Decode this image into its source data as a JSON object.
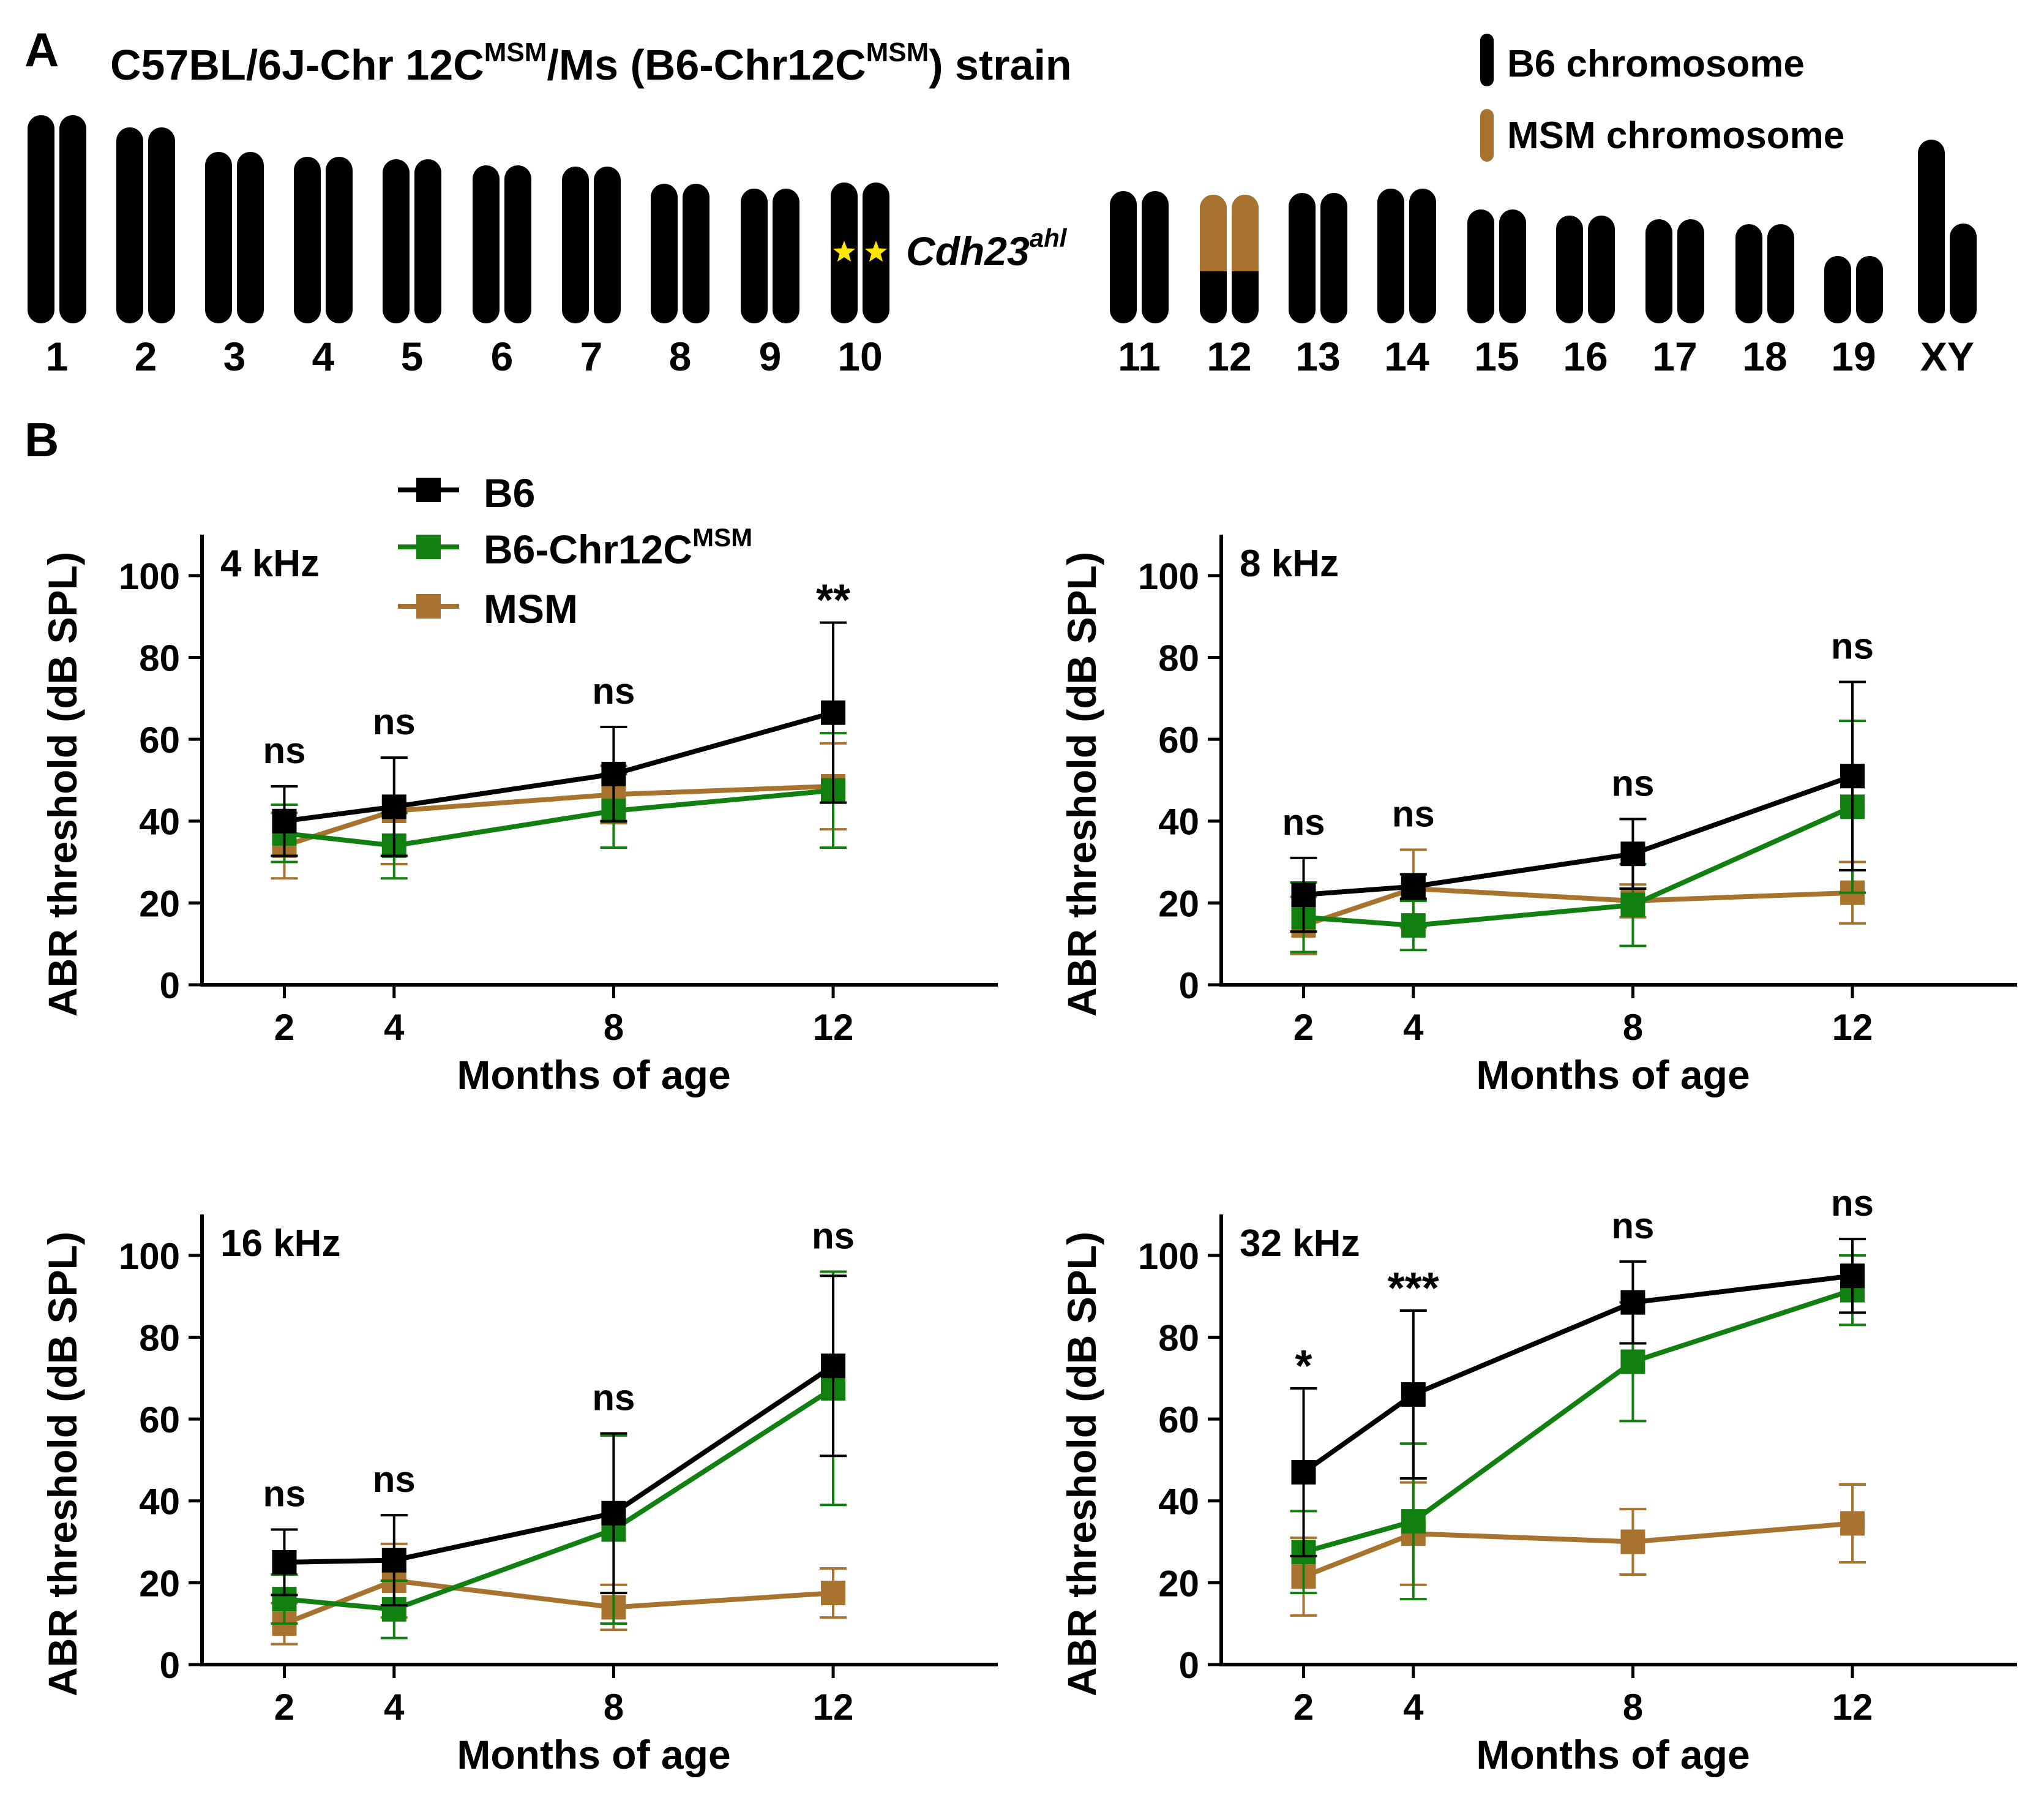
{
  "colors": {
    "b6": "#000000",
    "chr12": "#118011",
    "msm": "#A8732E",
    "star": "#FFE800"
  },
  "panelA": {
    "letter": "A",
    "title": {
      "p1": "C57BL/6J-Chr 12C",
      "sup1": "MSM",
      "p2": "/Ms (B6-Chr12C",
      "sup2": "MSM",
      "p3": ") strain"
    },
    "legend": {
      "b6": "B6 chromosome",
      "msm": "MSM chromosome"
    },
    "gene": {
      "name": "Cdh23",
      "sup": "ahl"
    },
    "chromosomes": [
      {
        "label": "1",
        "chromosome": 1
      },
      {
        "label": "2",
        "chromosome": 2
      },
      {
        "label": "3",
        "chromosome": 3
      },
      {
        "label": "4",
        "chromosome": 4
      },
      {
        "label": "5",
        "chromosome": 5
      },
      {
        "label": "6",
        "chromosome": 6
      },
      {
        "label": "7",
        "chromosome": 7
      },
      {
        "label": "8",
        "chromosome": 8
      },
      {
        "label": "9",
        "chromosome": 9
      },
      {
        "label": "10",
        "chromosome": 10
      },
      {
        "label": "11",
        "chromosome": 11
      },
      {
        "label": "12",
        "chromosome": 12
      },
      {
        "label": "13",
        "chromosome": 13
      },
      {
        "label": "14",
        "chromosome": 14
      },
      {
        "label": "15",
        "chromosome": 15
      },
      {
        "label": "16",
        "chromosome": 16
      },
      {
        "label": "17",
        "chromosome": 17
      },
      {
        "label": "18",
        "chromosome": 18
      },
      {
        "label": "19",
        "chromosome": 19
      },
      {
        "label": "XY",
        "chromosome": "XY"
      }
    ]
  },
  "panelB": {
    "letter": "B",
    "legend": {
      "b6": "B6",
      "chr12": "B6-Chr12C",
      "chr12_sup": "MSM",
      "msm": "MSM"
    }
  },
  "chart_data": [
    {
      "type": "line",
      "title": "4 kHz",
      "xlabel": "Months of age",
      "ylabel": "ABR threshold (dB SPL)",
      "x": [
        2,
        4,
        8,
        12
      ],
      "xlim": [
        0.5,
        15
      ],
      "ylim": [
        0,
        110
      ],
      "yticks": [
        0,
        20,
        40,
        60,
        80,
        100
      ],
      "significance": [
        "ns",
        "ns",
        "ns",
        "**"
      ],
      "series": [
        {
          "name": "B6",
          "values": [
            40,
            43.5,
            51.5,
            66.5
          ],
          "errors": [
            8.5,
            12,
            11.5,
            22
          ]
        },
        {
          "name": "B6-Chr12C MSM",
          "values": [
            37,
            34,
            42.5,
            47.5
          ],
          "errors": [
            7,
            8,
            9,
            14
          ]
        },
        {
          "name": "MSM",
          "values": [
            34,
            42.5,
            46.5,
            48.5
          ],
          "errors": [
            8,
            13,
            7,
            10.5
          ]
        }
      ]
    },
    {
      "type": "line",
      "title": "8 kHz",
      "xlabel": "Months of age",
      "ylabel": "ABR threshold (dB SPL)",
      "x": [
        2,
        4,
        8,
        12
      ],
      "xlim": [
        0.5,
        15
      ],
      "ylim": [
        0,
        110
      ],
      "yticks": [
        0,
        20,
        40,
        60,
        80,
        100
      ],
      "significance": [
        "ns",
        "ns",
        "ns",
        "ns"
      ],
      "series": [
        {
          "name": "B6",
          "values": [
            22,
            24,
            32,
            51
          ],
          "errors": [
            9,
            3,
            8.5,
            23
          ]
        },
        {
          "name": "B6-Chr12C MSM",
          "values": [
            16.5,
            14.5,
            19.5,
            43.5
          ],
          "errors": [
            8.5,
            6,
            10,
            21
          ]
        },
        {
          "name": "MSM",
          "values": [
            14.5,
            23.5,
            20.5,
            22.5
          ],
          "errors": [
            7,
            9.5,
            4,
            7.5
          ]
        }
      ]
    },
    {
      "type": "line",
      "title": "16 kHz",
      "xlabel": "Months of age",
      "ylabel": "ABR threshold (dB SPL)",
      "x": [
        2,
        4,
        8,
        12
      ],
      "xlim": [
        0.5,
        15
      ],
      "ylim": [
        0,
        110
      ],
      "yticks": [
        0,
        20,
        40,
        60,
        80,
        100
      ],
      "significance": [
        "ns",
        "ns",
        "ns",
        "ns"
      ],
      "series": [
        {
          "name": "B6",
          "values": [
            25,
            25.5,
            37,
            73
          ],
          "errors": [
            8,
            11,
            19.5,
            22
          ]
        },
        {
          "name": "B6-Chr12C MSM",
          "values": [
            16,
            13.5,
            33,
            67.5
          ],
          "errors": [
            6,
            7,
            23,
            28.5
          ]
        },
        {
          "name": "MSM",
          "values": [
            10,
            20.5,
            14,
            17.5
          ],
          "errors": [
            5,
            9,
            5.5,
            6
          ]
        }
      ]
    },
    {
      "type": "line",
      "title": "32 kHz",
      "xlabel": "Months of age",
      "ylabel": "ABR threshold (dB SPL)",
      "x": [
        2,
        4,
        8,
        12
      ],
      "xlim": [
        0.5,
        15
      ],
      "ylim": [
        0,
        110
      ],
      "yticks": [
        0,
        20,
        40,
        60,
        80,
        100
      ],
      "significance": [
        "*",
        "***",
        "ns",
        "ns"
      ],
      "series": [
        {
          "name": "B6",
          "values": [
            47,
            66,
            88.5,
            95
          ],
          "errors": [
            20.5,
            20.5,
            10,
            9
          ]
        },
        {
          "name": "B6-Chr12C MSM",
          "values": [
            27.5,
            35,
            74,
            91.5
          ],
          "errors": [
            10,
            19,
            14.5,
            8.5
          ]
        },
        {
          "name": "MSM",
          "values": [
            21.5,
            32,
            30,
            34.5
          ],
          "errors": [
            9.5,
            12.5,
            8,
            9.5
          ]
        }
      ]
    }
  ]
}
